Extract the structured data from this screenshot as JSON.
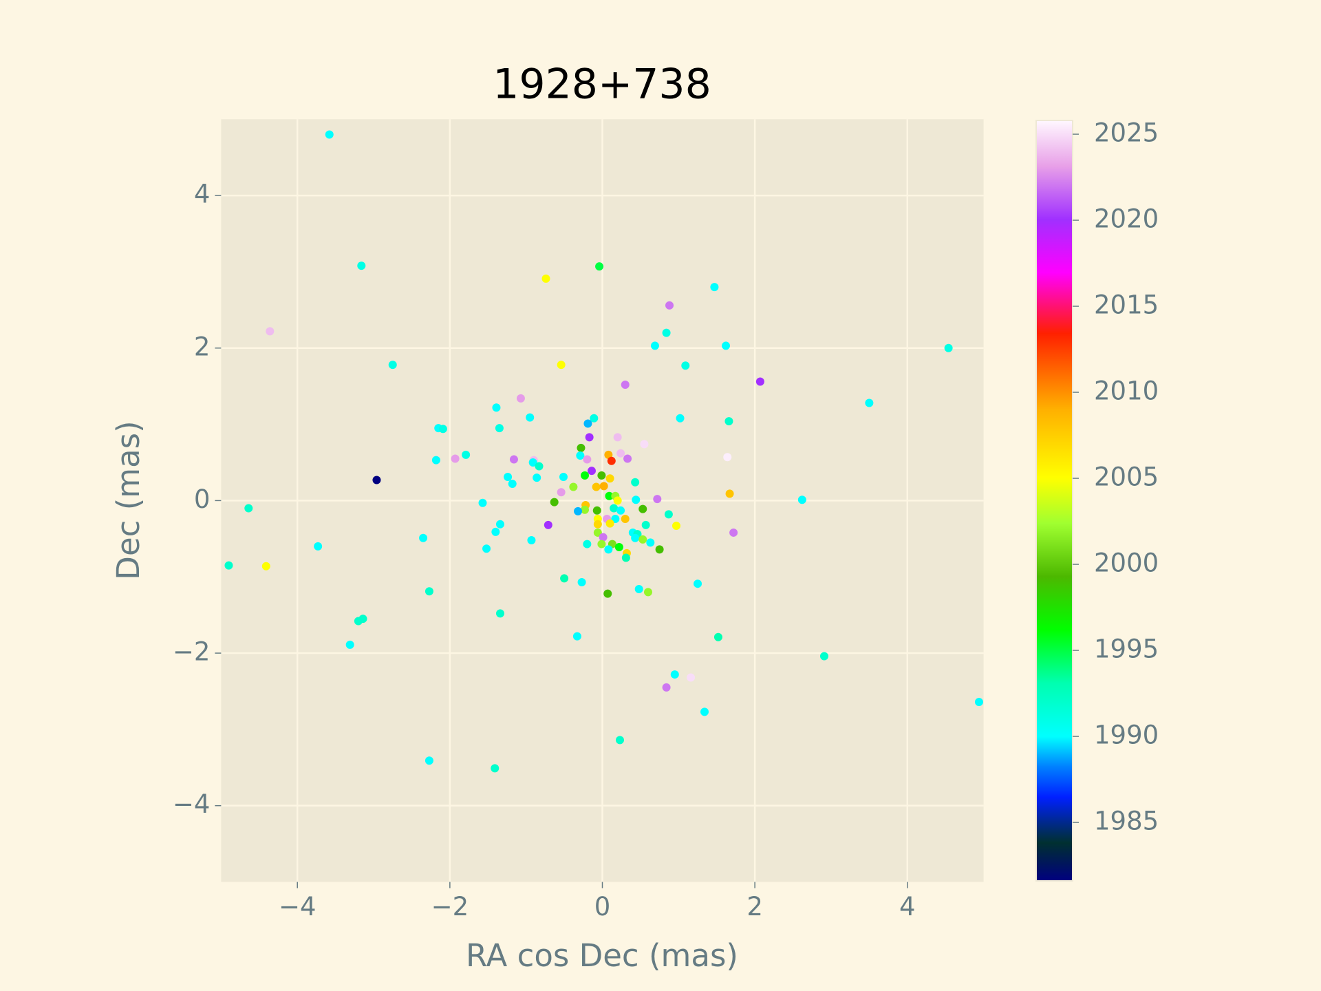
{
  "chart_data": {
    "type": "scatter",
    "title": "1928+738",
    "xlabel": "RA cos Dec (mas)",
    "ylabel": "Dec (mas)",
    "x": [
      -3.58,
      -3.16,
      -4.36,
      -2.75,
      -0.74,
      -0.04,
      0.88,
      1.47,
      0.84,
      0.69,
      1.62,
      4.54,
      -0.54,
      1.09,
      0.3,
      2.07,
      3.5,
      -1.07,
      -1.39,
      -0.95,
      -0.11,
      -0.19,
      1.02,
      1.66,
      -2.15,
      -2.09,
      -1.35,
      -0.17,
      0.2,
      0.55,
      -0.28,
      -2.18,
      -1.93,
      -1.79,
      -1.16,
      -0.9,
      -0.91,
      -0.83,
      -0.29,
      -0.2,
      0.08,
      0.12,
      0.24,
      0.33,
      1.64,
      -0.14,
      -1.24,
      -1.18,
      -0.86,
      -0.51,
      -0.23,
      -0.01,
      0.1,
      0.43,
      -2.96,
      -0.54,
      -0.38,
      -0.08,
      0.02,
      0.09,
      0.17,
      0.2,
      0.44,
      0.72,
      1.67,
      2.62,
      -1.57,
      -0.63,
      -0.22,
      -0.23,
      -0.32,
      -0.07,
      0.15,
      0.24,
      0.53,
      0.87,
      -4.64,
      -0.06,
      0.06,
      0.17,
      0.3,
      -0.06,
      0.1,
      -0.71,
      -1.34,
      0.57,
      0.97,
      1.72,
      -1.4,
      -0.06,
      0.4,
      0.46,
      0.43,
      0.01,
      -0.93,
      0.53,
      -2.35,
      -0.2,
      -0.01,
      0.13,
      0.22,
      0.63,
      0.08,
      0.75,
      -3.73,
      -1.52,
      0.32,
      0.31,
      -4.9,
      -4.41,
      -0.5,
      -0.27,
      1.25,
      0.48,
      -2.27,
      0.07,
      0.6,
      -1.34,
      -3.14,
      -3.2,
      -0.33,
      1.52,
      -3.31,
      2.91,
      0.95,
      1.16,
      0.84,
      4.94,
      1.34,
      0.23,
      -2.27,
      -1.41
    ],
    "y": [
      4.8,
      3.08,
      2.22,
      1.78,
      2.91,
      3.07,
      2.56,
      2.8,
      2.2,
      2.03,
      2.03,
      2.0,
      1.78,
      1.77,
      1.52,
      1.56,
      1.28,
      1.34,
      1.22,
      1.09,
      1.08,
      1.01,
      1.08,
      1.04,
      0.95,
      0.94,
      0.95,
      0.83,
      0.83,
      0.74,
      0.69,
      0.53,
      0.55,
      0.6,
      0.54,
      0.53,
      0.5,
      0.45,
      0.59,
      0.54,
      0.6,
      0.52,
      0.62,
      0.55,
      0.57,
      0.39,
      0.31,
      0.22,
      0.3,
      0.31,
      0.33,
      0.33,
      0.29,
      0.24,
      0.27,
      0.11,
      0.18,
      0.18,
      0.19,
      0.06,
      0.06,
      0.0,
      0.01,
      0.02,
      0.09,
      0.01,
      -0.03,
      -0.02,
      -0.06,
      -0.12,
      -0.14,
      -0.13,
      -0.1,
      -0.13,
      -0.11,
      -0.18,
      -0.1,
      -0.24,
      -0.24,
      -0.24,
      -0.24,
      -0.31,
      -0.3,
      -0.32,
      -0.31,
      -0.32,
      -0.33,
      -0.42,
      -0.41,
      -0.42,
      -0.42,
      -0.44,
      -0.49,
      -0.48,
      -0.52,
      -0.51,
      -0.49,
      -0.57,
      -0.57,
      -0.57,
      -0.61,
      -0.55,
      -0.64,
      -0.64,
      -0.6,
      -0.63,
      -0.69,
      -0.75,
      -0.85,
      -0.86,
      -1.02,
      -1.07,
      -1.09,
      -1.16,
      -1.19,
      -1.22,
      -1.2,
      -1.48,
      -1.55,
      -1.58,
      -1.78,
      -1.79,
      -1.89,
      -2.04,
      -2.28,
      -2.32,
      -2.45,
      -2.64,
      -2.77,
      -3.14,
      -3.41,
      -3.51
    ],
    "c": [
      1990,
      1991,
      2024,
      1991,
      2005,
      1995,
      2022,
      1990,
      1991,
      1990,
      1990,
      1991,
      2005,
      1991,
      2022,
      2020,
      1990,
      2023,
      1990,
      1990,
      1991,
      1989,
      1990,
      1992,
      1990,
      1991,
      1991,
      2020,
      2024,
      2025,
      1999,
      1990,
      2023,
      1991,
      2022,
      2024,
      1990,
      1992,
      1990,
      2023,
      2009,
      2013,
      2024,
      2022,
      2025.5,
      2020,
      1990,
      1990,
      1990,
      1990,
      1996,
      1999,
      2007,
      1992,
      1981.6,
      2023,
      2002,
      2008,
      2009,
      1996,
      2002,
      2005,
      1990,
      2022,
      2008,
      1990,
      1990,
      1999,
      2008,
      2002,
      1989,
      1999,
      1992,
      1990,
      1999,
      1992,
      1992,
      2005,
      2023,
      1990,
      2008,
      2007,
      2006,
      2020,
      1990,
      1992,
      2005,
      2022,
      1990,
      2002,
      1990,
      1992,
      1990,
      2022,
      1990,
      2002,
      1990,
      1991,
      2002,
      2001,
      1996,
      1990,
      1990,
      1999,
      1990,
      1990,
      2007,
      1993,
      1992,
      2005,
      1993,
      1990,
      1990,
      1990,
      1992,
      1999,
      2002,
      1992,
      1992,
      1992,
      1990,
      1993,
      1990,
      1992,
      1990,
      2025,
      2022,
      1990,
      1990,
      1992,
      1990,
      1992
    ],
    "colormap": "gist_ncar",
    "clim": [
      1981.6,
      2025.8
    ],
    "cticks": [
      1985,
      1990,
      1995,
      2000,
      2005,
      2010,
      2015,
      2020,
      2025
    ],
    "xlim": [
      -5,
      5
    ],
    "ylim": [
      -5,
      5
    ],
    "xticks": [
      {
        "value": -4,
        "label": "−4"
      },
      {
        "value": -2,
        "label": "−2"
      },
      0,
      2,
      4
    ],
    "yticks": [
      {
        "value": -4,
        "label": "−4"
      },
      {
        "value": -2,
        "label": "−2"
      },
      0,
      2,
      4
    ],
    "grid": true
  }
}
